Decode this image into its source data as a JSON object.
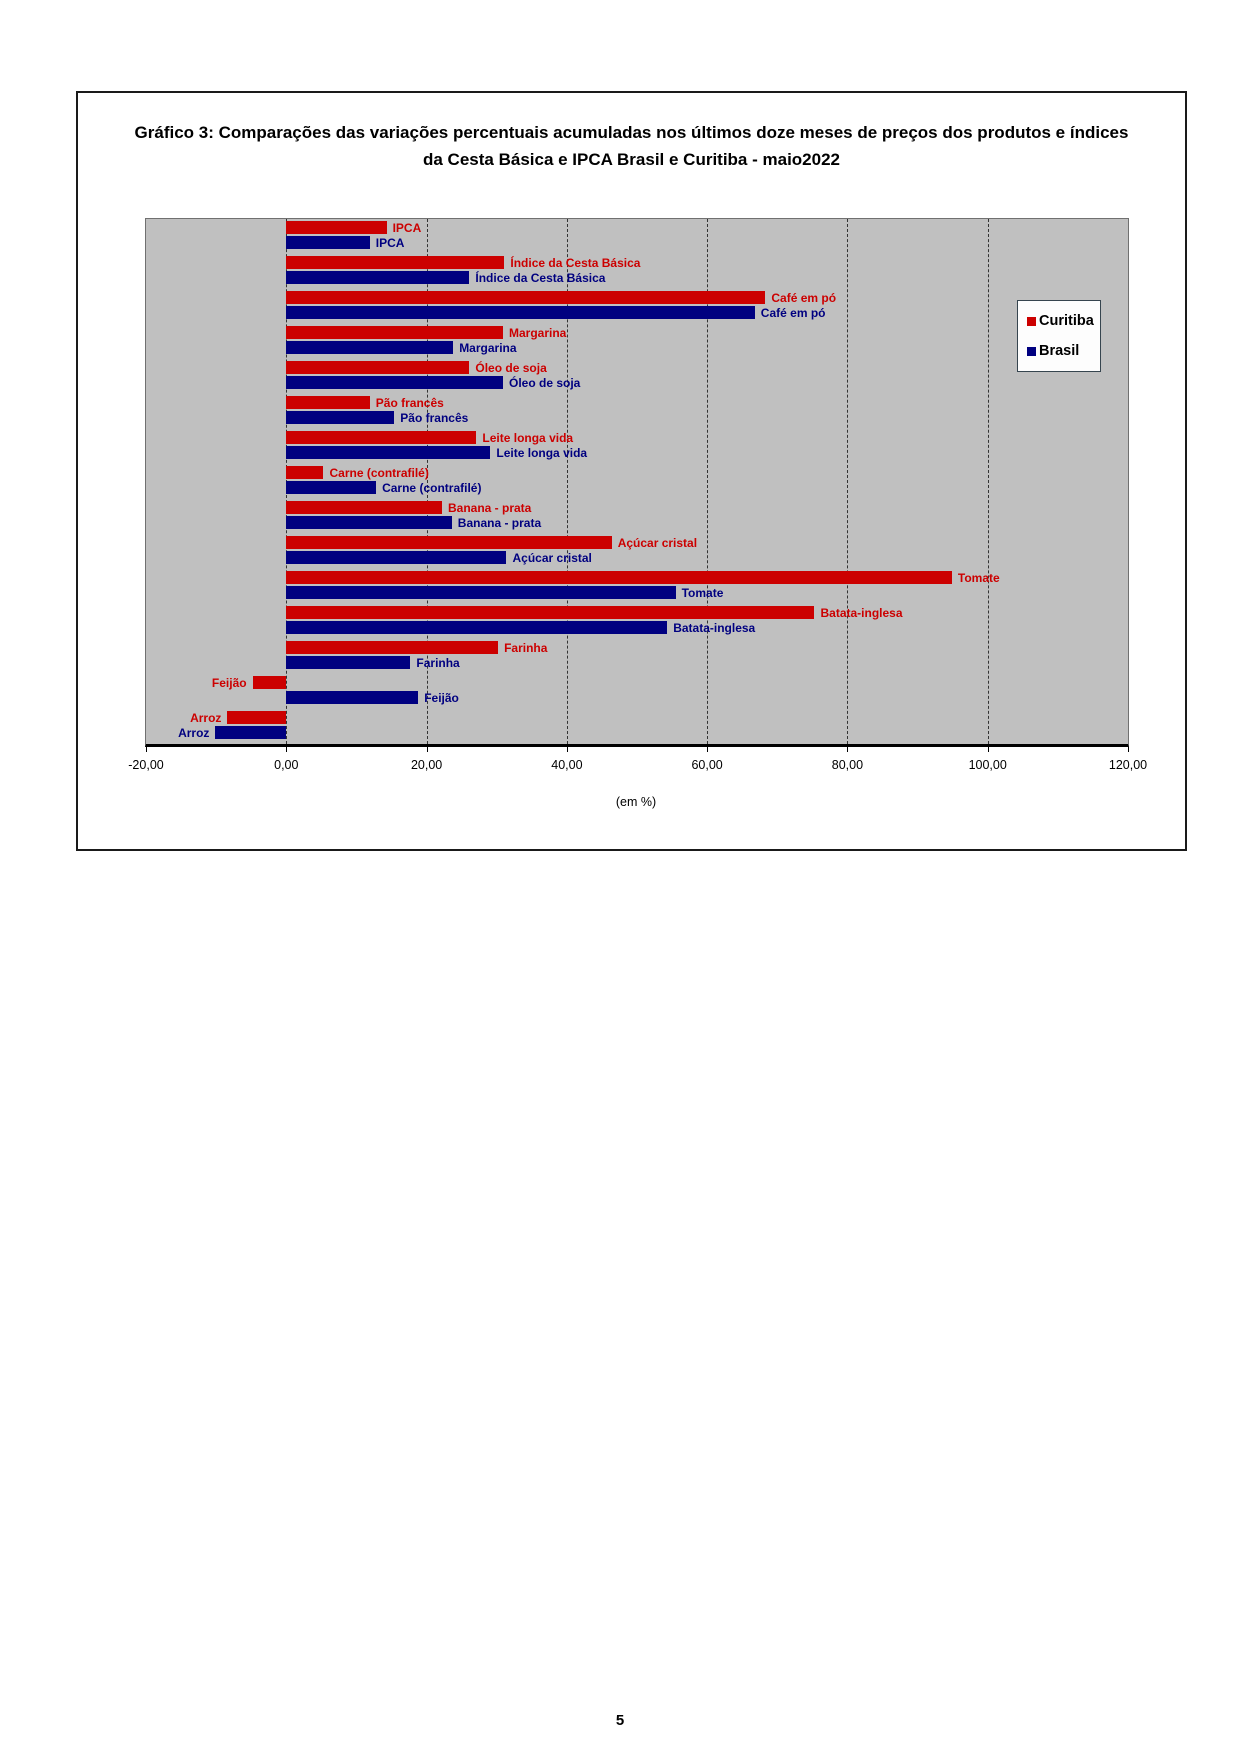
{
  "page": {
    "number": "5"
  },
  "chart_data": {
    "type": "bar",
    "orientation": "horizontal",
    "title": "Gráfico 3: Comparações das variações percentuais acumuladas nos últimos doze meses de preços dos produtos e índices da Cesta Básica e IPCA Brasil e Curitiba - maio2022",
    "xlabel": "(em %)",
    "xlim": [
      -20,
      120
    ],
    "xtick_values": [
      -20,
      0,
      20,
      40,
      60,
      80,
      100,
      120
    ],
    "xtick_labels": [
      "-20,00",
      "0,00",
      "20,00",
      "40,00",
      "60,00",
      "80,00",
      "100,00",
      "120,00"
    ],
    "grid": {
      "vertical_dashed_at": [
        0,
        20,
        40,
        60,
        80,
        100
      ]
    },
    "plot_background": "#c0c0c0",
    "legend_position": "right",
    "categories": [
      "IPCA",
      "Índice da Cesta Básica",
      "Café em pó",
      "Margarina",
      "Óleo de soja",
      "Pão francês",
      "Leite longa vida",
      "Carne (contrafilé)",
      "Banana - prata",
      "Açúcar cristal",
      "Tomate",
      "Batata-inglesa",
      "Farinha",
      "Feijão",
      "Arroz"
    ],
    "series": [
      {
        "name": "Curitiba",
        "color": "#cc0000",
        "values": [
          14.3,
          31.1,
          68.3,
          30.9,
          26.1,
          11.9,
          27.1,
          5.3,
          22.2,
          46.4,
          94.9,
          75.3,
          30.2,
          -4.8,
          -8.4
        ]
      },
      {
        "name": "Brasil",
        "color": "#000080",
        "values": [
          11.9,
          26.1,
          66.8,
          23.8,
          30.9,
          15.4,
          29.1,
          12.8,
          23.6,
          31.4,
          55.5,
          54.3,
          17.7,
          18.8,
          -10.1
        ]
      }
    ]
  }
}
